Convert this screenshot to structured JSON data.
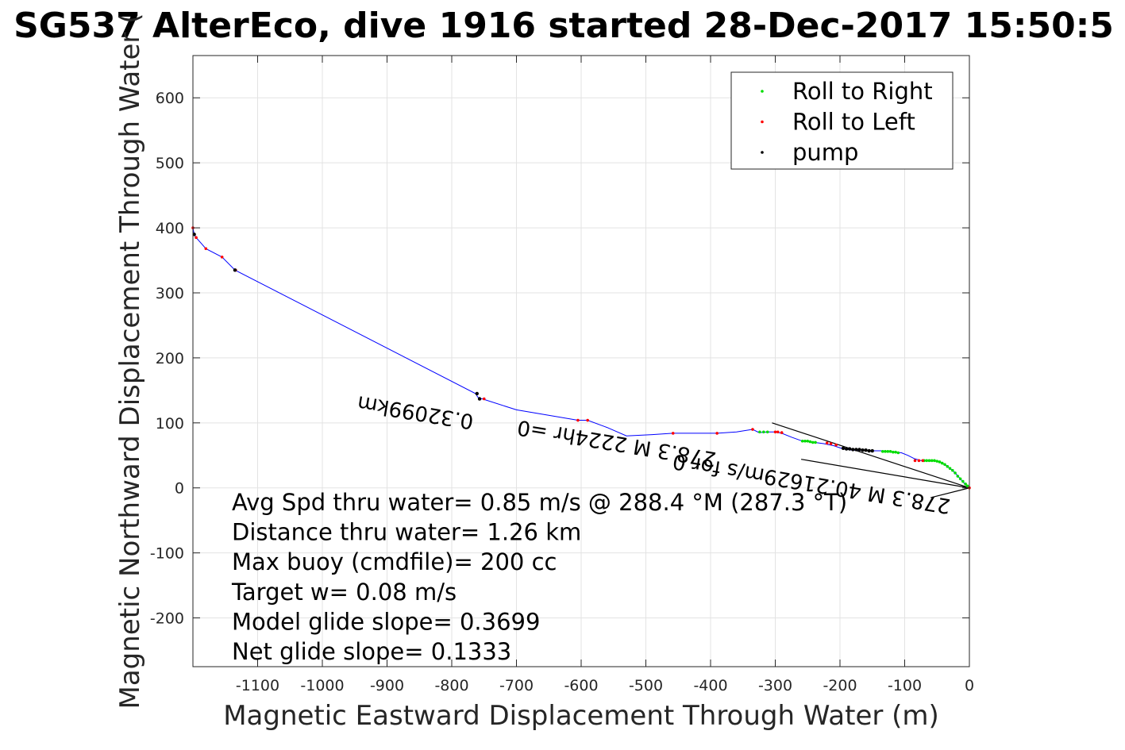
{
  "chart_data": {
    "type": "line",
    "title": "SG537 AlterEco, dive 1916 started 28-Dec-2017 15:50:5",
    "xlabel": "Magnetic Eastward Displacement Through Water (m)",
    "ylabel": "Magnetic Northward Displacement Through Water (",
    "xlim": [
      -1200,
      0
    ],
    "ylim": [
      -275,
      665
    ],
    "xticks": [
      -1100,
      -1000,
      -900,
      -800,
      -700,
      -600,
      -500,
      -400,
      -300,
      -200,
      -100,
      0
    ],
    "yticks": [
      -200,
      -100,
      0,
      100,
      200,
      300,
      400,
      500,
      600
    ],
    "grid": true,
    "legend_position": "top-right",
    "legend": [
      {
        "label": "Roll to Right",
        "color": "#00dd00"
      },
      {
        "label": "Roll to Left",
        "color": "#ff0000"
      },
      {
        "label": "pump",
        "color": "#000000"
      }
    ],
    "track_color": "#0000ff",
    "track": {
      "x": [
        0,
        -8,
        -15,
        -22,
        -30,
        -38,
        -46,
        -55,
        -65,
        -75,
        -85,
        -95,
        -105,
        -115,
        -125,
        -135,
        -150,
        -165,
        -180,
        -195,
        -210,
        -225,
        -240,
        -258,
        -275,
        -290,
        -300,
        -312,
        -325,
        -335,
        -360,
        -390,
        -420,
        -458,
        -490,
        -530,
        -560,
        -590,
        -605,
        -700,
        -753,
        -757,
        -760,
        -763,
        -1135,
        -1155,
        -1180,
        -1195,
        -1198,
        -1200
      ],
      "y": [
        0,
        7,
        15,
        23,
        30,
        36,
        40,
        42,
        42,
        42,
        45,
        50,
        54,
        55,
        56,
        57,
        57,
        58,
        58,
        60,
        65,
        68,
        70,
        72,
        78,
        84,
        86,
        86,
        85,
        90,
        86,
        84,
        84,
        84,
        82,
        80,
        93,
        104,
        104,
        120,
        137,
        137,
        140,
        145,
        335,
        355,
        368,
        385,
        390,
        400
      ]
    },
    "roll_right_points": {
      "x": [
        -3,
        -6,
        -10,
        -14,
        -18,
        -22,
        -26,
        -30,
        -34,
        -38,
        -42,
        -46,
        -50,
        -54,
        -58,
        -62,
        -66,
        -70,
        -110,
        -114,
        -118,
        -122,
        -126,
        -130,
        -134,
        -238,
        -242,
        -246,
        -250,
        -254,
        -258,
        -312,
        -318,
        -324
      ],
      "y": [
        3,
        6,
        10,
        14,
        18,
        23,
        27,
        30,
        33,
        36,
        38,
        40,
        41,
        42,
        42,
        42,
        42,
        42,
        54,
        55,
        55,
        56,
        56,
        56,
        56,
        70,
        70,
        71,
        72,
        72,
        72,
        86,
        86,
        86
      ]
    },
    "roll_left_points": {
      "x": [
        0,
        -72,
        -78,
        -84,
        -206,
        -214,
        -220,
        -290,
        -296,
        -300,
        -335,
        -390,
        -458,
        -590,
        -605,
        -750,
        -1134,
        -1155,
        -1180,
        -1195,
        -1198,
        -1200
      ],
      "y": [
        0,
        42,
        42,
        42,
        66,
        68,
        69,
        85,
        86,
        86,
        90,
        84,
        84,
        104,
        104,
        137,
        335,
        355,
        368,
        385,
        390,
        400
      ]
    },
    "pump_points": {
      "x": [
        -150,
        -155,
        -160,
        -165,
        -170,
        -175,
        -180,
        -185,
        -190,
        -195,
        -757,
        -761,
        -1135,
        -1198
      ],
      "y": [
        57,
        57,
        58,
        58,
        59,
        59,
        59,
        60,
        60,
        61,
        137,
        145,
        335,
        390
      ]
    },
    "guide_lines": [
      {
        "from": [
          0,
          0
        ],
        "to": [
          -305,
          100
        ]
      },
      {
        "from": [
          0,
          0
        ],
        "to": [
          -260,
          44
        ]
      },
      {
        "from": [
          0,
          0
        ],
        "to": [
          -60,
          -15
        ]
      }
    ],
    "segment_labels": [
      {
        "text": "0.32099km",
        "anchor": [
          -765,
          112
        ],
        "rotation": 189.3
      },
      {
        "text": "278.3 M 2224hr =0",
        "anchor": [
          -390,
          54
        ],
        "rotation": 189.3
      },
      {
        "text": "278.3 M 40.21629m/s for 0",
        "anchor": [
          -28,
          -18
        ],
        "rotation": 189.3
      }
    ],
    "annotations": [
      "Avg Spd thru water=  0.85 m/s @ 288.4 °M (287.3 °T)",
      "Distance thru water=  1.26 km",
      "Max buoy (cmdfile)= 200 cc",
      "Target w= 0.08 m/s",
      "Model glide slope= 0.3699",
      "Net glide slope= 0.1333"
    ]
  }
}
